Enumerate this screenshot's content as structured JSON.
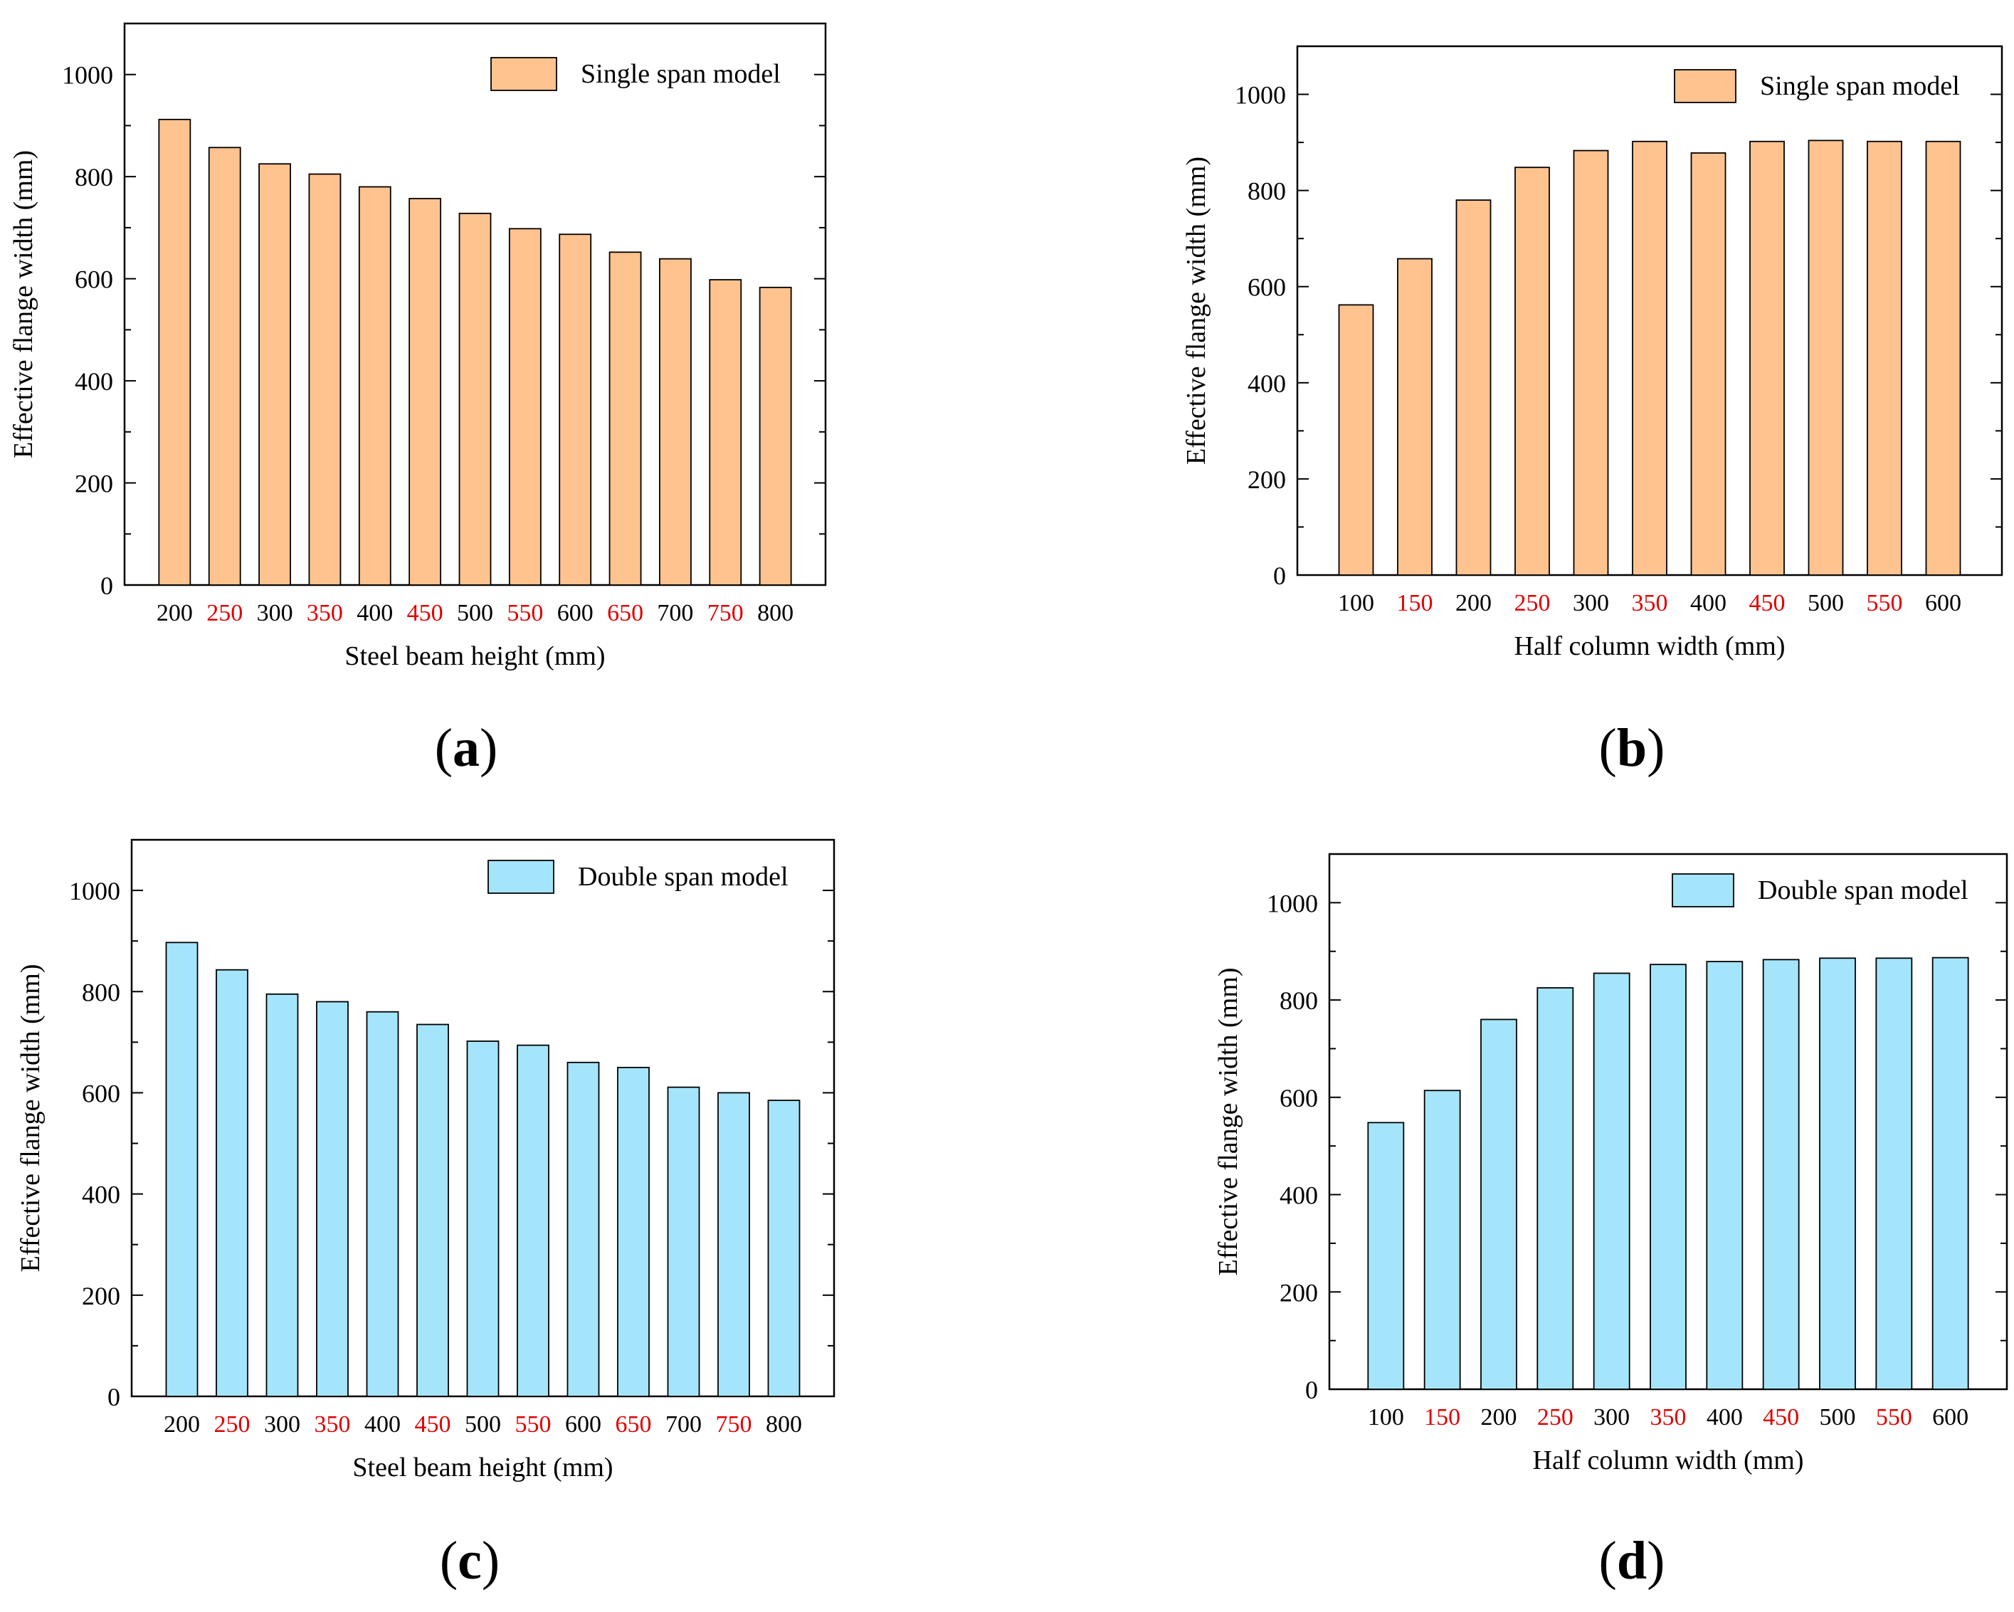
{
  "chart_data": [
    {
      "id": "a",
      "type": "bar",
      "caption_letter": "a",
      "categories": [
        "200",
        "250",
        "300",
        "350",
        "400",
        "450",
        "500",
        "550",
        "600",
        "650",
        "700",
        "750",
        "800"
      ],
      "values": [
        912,
        857,
        825,
        805,
        780,
        757,
        728,
        698,
        687,
        652,
        639,
        598,
        583
      ],
      "series_name": "Single span model",
      "bar_color": "#ffc38f",
      "highlight_tick_color": "#e00000",
      "xlabel": "Steel beam height (mm)",
      "ylabel": "Effective flange width (mm)",
      "ylim": [
        0,
        1100
      ],
      "yticks": [
        0,
        200,
        400,
        600,
        800,
        1000
      ],
      "legend_position": "top-right"
    },
    {
      "id": "b",
      "type": "bar",
      "caption_letter": "b",
      "categories": [
        "100",
        "150",
        "200",
        "250",
        "300",
        "350",
        "400",
        "450",
        "500",
        "550",
        "600"
      ],
      "values": [
        562,
        658,
        780,
        848,
        883,
        902,
        878,
        902,
        904,
        902,
        902
      ],
      "series_name": "Single span model",
      "bar_color": "#ffc38f",
      "highlight_tick_color": "#e00000",
      "xlabel": "Half column width (mm)",
      "ylabel": "Effective flange width (mm)",
      "ylim": [
        0,
        1100
      ],
      "yticks": [
        0,
        200,
        400,
        600,
        800,
        1000
      ],
      "legend_position": "top-right"
    },
    {
      "id": "c",
      "type": "bar",
      "caption_letter": "c",
      "categories": [
        "200",
        "250",
        "300",
        "350",
        "400",
        "450",
        "500",
        "550",
        "600",
        "650",
        "700",
        "750",
        "800"
      ],
      "values": [
        897,
        843,
        795,
        780,
        760,
        735,
        702,
        694,
        660,
        650,
        611,
        600,
        585
      ],
      "series_name": "Double span model",
      "bar_color": "#a5e5fb",
      "highlight_tick_color": "#e00000",
      "xlabel": "Steel beam height (mm)",
      "ylabel": "Effective flange width (mm)",
      "ylim": [
        0,
        1100
      ],
      "yticks": [
        0,
        200,
        400,
        600,
        800,
        1000
      ],
      "legend_position": "top-right"
    },
    {
      "id": "d",
      "type": "bar",
      "caption_letter": "d",
      "categories": [
        "100",
        "150",
        "200",
        "250",
        "300",
        "350",
        "400",
        "450",
        "500",
        "550",
        "600"
      ],
      "values": [
        548,
        614,
        760,
        825,
        855,
        873,
        879,
        883,
        886,
        886,
        887
      ],
      "series_name": "Double span model",
      "bar_color": "#a5e5fb",
      "highlight_tick_color": "#e00000",
      "xlabel": "Half column width (mm)",
      "ylabel": "Effective flange width (mm)",
      "ylim": [
        0,
        1100
      ],
      "yticks": [
        0,
        200,
        400,
        600,
        800,
        1000
      ],
      "legend_position": "top-right"
    }
  ]
}
